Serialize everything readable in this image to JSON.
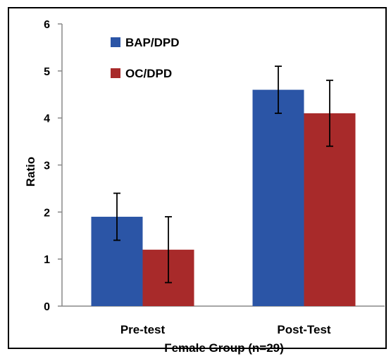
{
  "chart_data": {
    "type": "bar",
    "title": "",
    "xlabel": "Female Group (n=29)",
    "ylabel": "Ratio",
    "ylim": [
      0,
      6
    ],
    "yticks": [
      "0",
      "1",
      "2",
      "3",
      "4",
      "5",
      "6"
    ],
    "categories": [
      "Pre-test",
      "Post-Test"
    ],
    "series": [
      {
        "name": "BAP/DPD",
        "color": "#2b55a6",
        "values": [
          1.9,
          4.6
        ],
        "errors": [
          0.5,
          0.5
        ]
      },
      {
        "name": "OC/DPD",
        "color": "#a82a2a",
        "values": [
          1.2,
          4.1
        ],
        "errors": [
          0.7,
          0.7
        ]
      }
    ],
    "legend_position": "top-left",
    "grid": false
  }
}
